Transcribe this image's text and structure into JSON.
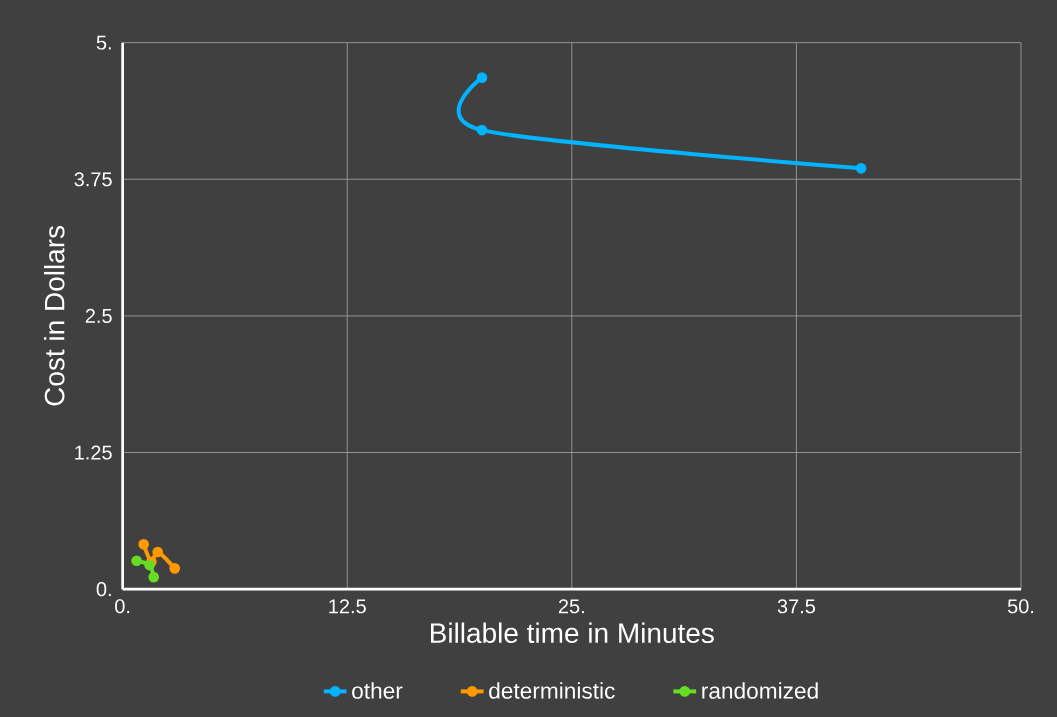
{
  "chart_data": {
    "type": "line",
    "xlabel": "Billable time in Minutes",
    "ylabel": "Cost in Dollars",
    "xlim": [
      0,
      50
    ],
    "ylim": [
      0,
      5
    ],
    "xticks": [
      {
        "value": 0,
        "label": "0."
      },
      12.5,
      {
        "value": 25,
        "label": "25."
      },
      37.5,
      {
        "value": 50,
        "label": "50."
      }
    ],
    "yticks": [
      {
        "value": 0,
        "label": "0."
      },
      1.25,
      2.5,
      3.75,
      {
        "value": 5,
        "label": "5."
      }
    ],
    "grid": true,
    "legend": "bottom",
    "marker": "circle",
    "line_style": "solid",
    "series": [
      {
        "name": "other",
        "color": "#00b4ff",
        "x": [
          20.0,
          20.0,
          41.1
        ],
        "values": [
          4.68,
          4.2,
          3.85
        ]
      },
      {
        "name": "deterministic",
        "color": "#ff9900",
        "x": [
          1.17,
          1.6,
          1.95,
          2.9
        ],
        "values": [
          0.41,
          0.25,
          0.34,
          0.19
        ]
      },
      {
        "name": "randomized",
        "color": "#66dd22",
        "x": [
          0.78,
          1.5,
          1.73
        ],
        "values": [
          0.26,
          0.22,
          0.11
        ]
      }
    ]
  }
}
